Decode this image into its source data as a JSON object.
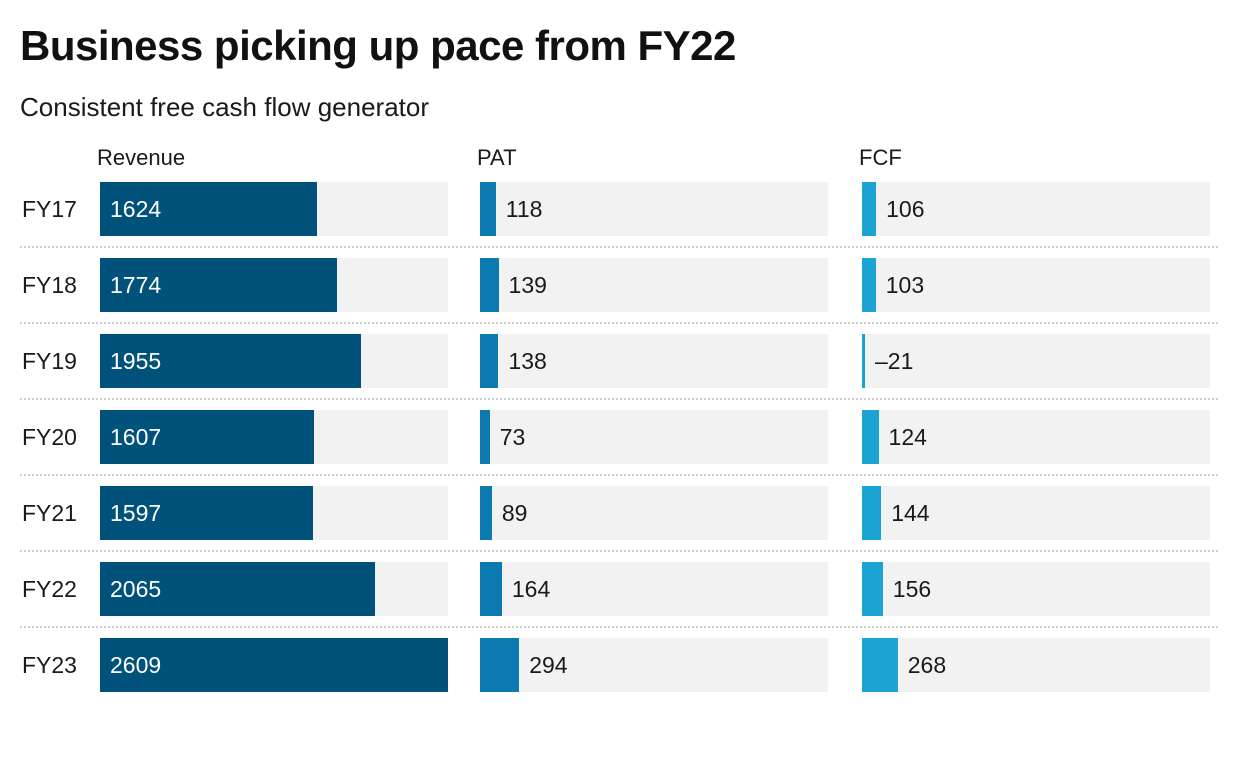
{
  "chart_data": {
    "type": "bar",
    "title": "Business picking up pace from FY22",
    "subtitle": "Consistent free cash flow generator",
    "categories": [
      "FY17",
      "FY18",
      "FY19",
      "FY20",
      "FY21",
      "FY22",
      "FY23"
    ],
    "series": [
      {
        "name": "Revenue",
        "values": [
          1624,
          1774,
          1955,
          1607,
          1597,
          2065,
          2609
        ],
        "labels": [
          "1624",
          "1774",
          "1955",
          "1607",
          "1597",
          "2065",
          "2609"
        ],
        "color": "#00527a",
        "max": 2609
      },
      {
        "name": "PAT",
        "values": [
          118,
          139,
          138,
          73,
          89,
          164,
          294
        ],
        "labels": [
          "118",
          "139",
          "138",
          "73",
          "89",
          "164",
          "294"
        ],
        "color": "#0a7ab0",
        "max": 2609
      },
      {
        "name": "FCF",
        "values": [
          106,
          103,
          -21,
          124,
          144,
          156,
          268
        ],
        "labels": [
          "106",
          "103",
          "–21",
          "124",
          "144",
          "156",
          "268"
        ],
        "color": "#1ba3d4",
        "max": 2609
      }
    ],
    "grid": false,
    "legend": "none"
  }
}
